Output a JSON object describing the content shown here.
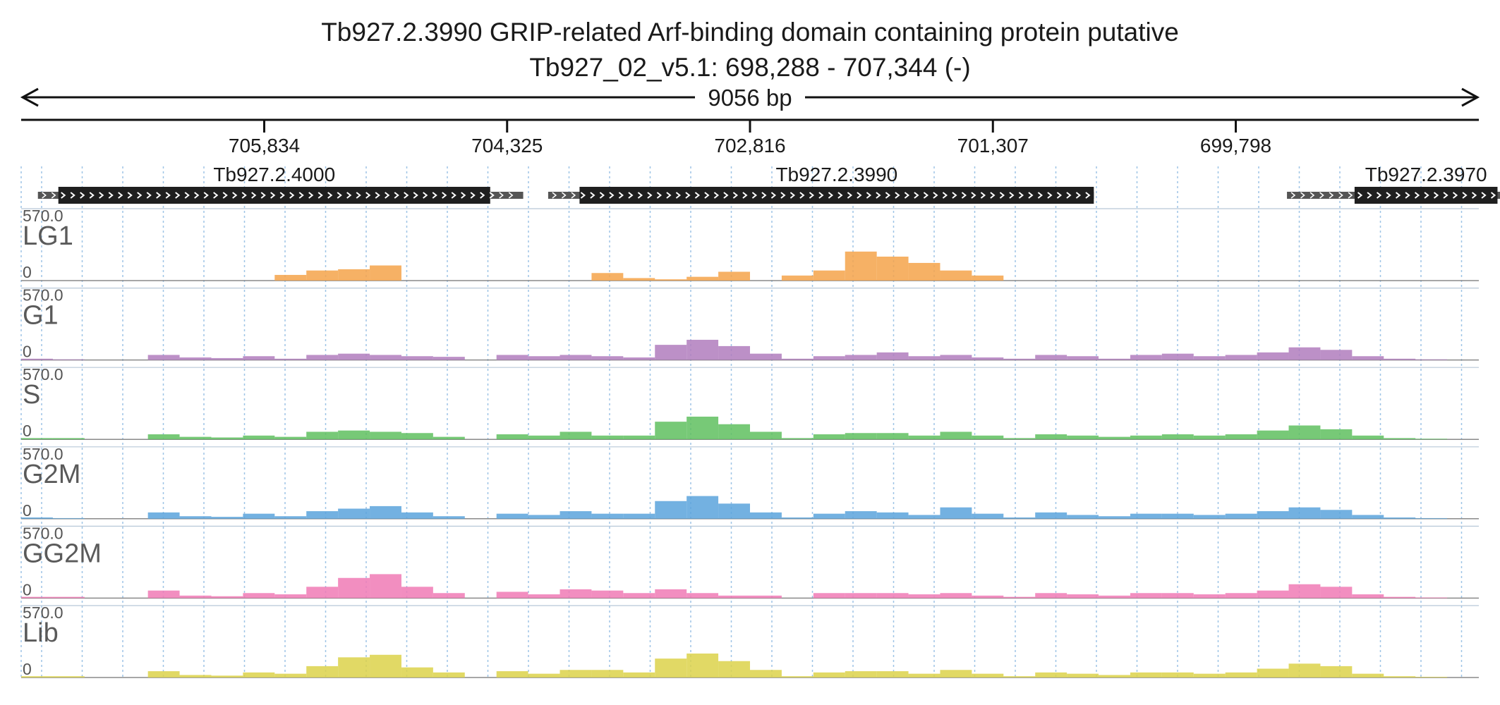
{
  "title": {
    "line1": "Tb927.2.3990  GRIP-related Arf-binding domain containing protein  putative",
    "line2": "Tb927_02_v5.1: 698,288 - 707,344 (-)"
  },
  "span_label": "9056 bp",
  "region": {
    "start": 707344,
    "end": 698288,
    "strand": "-"
  },
  "ruler_ticks": [
    "705,834",
    "704,325",
    "702,816",
    "701,307",
    "699,798"
  ],
  "ruler_tick_values": [
    705834,
    704325,
    702816,
    701307,
    699798
  ],
  "genes": [
    {
      "name": "Tb927.2.4000",
      "start": 707240,
      "end": 704225,
      "cds_start": 707113,
      "cds_end": 704430
    },
    {
      "name": "Tb927.2.3990",
      "start": 704070,
      "end": 700680,
      "cds_start": 703875,
      "cds_end": 700680
    },
    {
      "name": "Tb927.2.3970",
      "start": 699480,
      "end": 698120,
      "cds_start": 699060,
      "cds_end": 698172
    }
  ],
  "colors": {
    "LG1": "#f5a34a",
    "G1": "#b07cbd",
    "S": "#5fbf5f",
    "G2M": "#5aa3dc",
    "GG2M": "#f07ab5",
    "Lib": "#dcd24a",
    "gene_cds": "#1f1f1f",
    "gene_utr": "#555555",
    "gridline": "#9ec4e6"
  },
  "chart_data": {
    "type": "area",
    "x_axis": {
      "reversed": true,
      "range": [
        707344,
        698288
      ],
      "unit": "bp"
    },
    "ylim": [
      0,
      570.0
    ],
    "ymax_label": "570.0",
    "ymin_label": "0",
    "note_series": "values are read coverage per bin; 46 bins across the region from 707,344 down to 698,288 (about 197 bp each)",
    "series": [
      {
        "name": "LG1",
        "values": [
          0,
          0,
          0,
          0,
          0,
          0,
          0,
          0,
          45,
          80,
          90,
          120,
          0,
          0,
          0,
          0,
          0,
          0,
          60,
          20,
          10,
          30,
          70,
          0,
          40,
          80,
          230,
          190,
          140,
          80,
          40,
          0,
          0,
          0,
          0,
          0,
          0,
          0,
          0,
          0,
          0,
          0,
          0,
          0,
          0,
          0
        ]
      },
      {
        "name": "G1",
        "values": [
          10,
          5,
          0,
          0,
          40,
          20,
          15,
          30,
          10,
          40,
          50,
          40,
          30,
          25,
          0,
          40,
          30,
          40,
          30,
          20,
          120,
          160,
          110,
          50,
          10,
          30,
          40,
          60,
          30,
          40,
          20,
          10,
          40,
          30,
          10,
          40,
          50,
          30,
          40,
          60,
          100,
          80,
          30,
          10,
          5,
          0
        ]
      },
      {
        "name": "S",
        "values": [
          10,
          10,
          0,
          0,
          40,
          20,
          15,
          30,
          20,
          60,
          70,
          60,
          50,
          20,
          0,
          40,
          30,
          60,
          30,
          30,
          140,
          180,
          120,
          60,
          10,
          40,
          50,
          50,
          30,
          60,
          30,
          10,
          40,
          30,
          20,
          30,
          40,
          30,
          40,
          70,
          110,
          80,
          30,
          10,
          5,
          0
        ]
      },
      {
        "name": "G2M",
        "values": [
          10,
          5,
          0,
          0,
          50,
          20,
          15,
          40,
          20,
          60,
          80,
          100,
          50,
          20,
          0,
          40,
          30,
          60,
          40,
          40,
          140,
          180,
          120,
          50,
          10,
          40,
          60,
          50,
          30,
          90,
          40,
          10,
          50,
          30,
          20,
          40,
          40,
          30,
          40,
          60,
          90,
          70,
          30,
          10,
          5,
          0
        ]
      },
      {
        "name": "GG2M",
        "values": [
          10,
          10,
          0,
          0,
          60,
          20,
          15,
          40,
          30,
          90,
          160,
          190,
          90,
          40,
          0,
          50,
          30,
          70,
          60,
          40,
          70,
          40,
          20,
          20,
          0,
          40,
          40,
          40,
          30,
          40,
          20,
          10,
          40,
          30,
          20,
          40,
          40,
          30,
          40,
          60,
          110,
          90,
          30,
          10,
          5,
          0
        ]
      },
      {
        "name": "Lib",
        "values": [
          10,
          10,
          0,
          0,
          50,
          20,
          15,
          40,
          30,
          90,
          160,
          180,
          80,
          40,
          0,
          50,
          30,
          60,
          60,
          40,
          150,
          190,
          130,
          60,
          10,
          40,
          50,
          50,
          30,
          60,
          30,
          10,
          40,
          30,
          20,
          40,
          40,
          30,
          40,
          70,
          110,
          90,
          30,
          10,
          5,
          0
        ]
      }
    ]
  }
}
